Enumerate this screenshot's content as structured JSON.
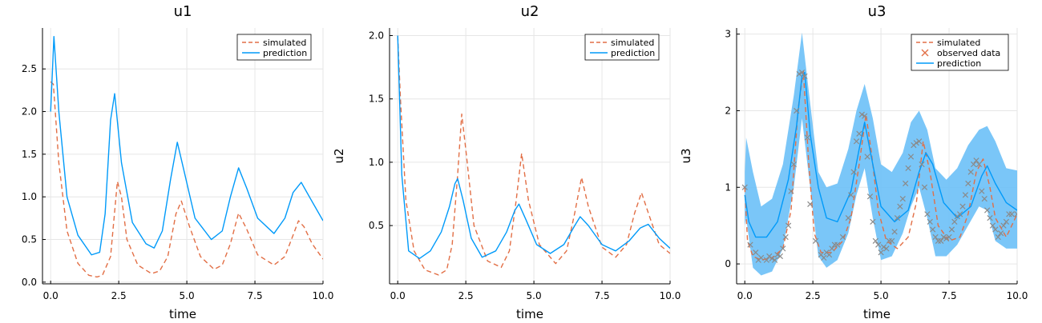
{
  "colors": {
    "simulated": "#e26f46",
    "prediction": "#009af9",
    "band": "#6cc0f7",
    "observed_mark": "#e26f46",
    "observed_overlay": "#8a8a8a"
  },
  "chart_data": [
    {
      "type": "line",
      "title": "u1",
      "xlabel": "time",
      "ylabel": "",
      "xlim": [
        -0.3,
        10.0
      ],
      "ylim": [
        -0.02,
        2.98
      ],
      "xticks": [
        0.0,
        2.5,
        5.0,
        7.5,
        10.0
      ],
      "xtick_labels": [
        "0.0",
        "2.5",
        "5.0",
        "7.5",
        "10.0"
      ],
      "yticks": [
        0.0,
        0.5,
        1.0,
        1.5,
        2.0,
        2.5
      ],
      "ytick_labels": [
        "0.0",
        "0.5",
        "1.0",
        "1.5",
        "2.0",
        "2.5"
      ],
      "grid": true,
      "legend": "top-right",
      "legend_entries": [
        "simulated",
        "prediction"
      ],
      "series": [
        {
          "name": "simulated",
          "style": "dashed",
          "x": [
            0.0,
            0.1,
            0.3,
            0.6,
            1.0,
            1.4,
            1.7,
            1.9,
            2.2,
            2.45,
            2.6,
            2.8,
            3.2,
            3.7,
            4.0,
            4.3,
            4.6,
            4.8,
            5.1,
            5.5,
            6.0,
            6.3,
            6.6,
            6.9,
            7.2,
            7.6,
            8.2,
            8.6,
            8.9,
            9.1,
            9.3,
            9.6,
            10.0
          ],
          "y": [
            2.35,
            2.32,
            1.4,
            0.6,
            0.22,
            0.08,
            0.06,
            0.08,
            0.3,
            1.18,
            1.0,
            0.5,
            0.2,
            0.1,
            0.13,
            0.3,
            0.8,
            0.95,
            0.65,
            0.3,
            0.15,
            0.2,
            0.45,
            0.81,
            0.62,
            0.32,
            0.2,
            0.3,
            0.55,
            0.72,
            0.65,
            0.45,
            0.27
          ]
        },
        {
          "name": "prediction",
          "style": "solid",
          "x": [
            0.0,
            0.12,
            0.3,
            0.6,
            1.0,
            1.5,
            1.8,
            2.0,
            2.2,
            2.35,
            2.6,
            3.0,
            3.5,
            3.8,
            4.1,
            4.4,
            4.65,
            4.9,
            5.3,
            5.9,
            6.3,
            6.6,
            6.9,
            7.2,
            7.6,
            8.2,
            8.6,
            8.9,
            9.2,
            9.5,
            10.0
          ],
          "y": [
            2.0,
            2.88,
            2.0,
            1.0,
            0.55,
            0.32,
            0.35,
            0.8,
            1.9,
            2.21,
            1.4,
            0.7,
            0.45,
            0.4,
            0.6,
            1.2,
            1.64,
            1.3,
            0.75,
            0.5,
            0.6,
            1.0,
            1.34,
            1.1,
            0.75,
            0.57,
            0.75,
            1.05,
            1.17,
            1.0,
            0.72
          ]
        }
      ]
    },
    {
      "type": "line",
      "title": "u2",
      "xlabel": "time",
      "ylabel": "u2",
      "xlim": [
        -0.3,
        10.0
      ],
      "ylim": [
        0.04,
        2.06
      ],
      "xticks": [
        0.0,
        2.5,
        5.0,
        7.5,
        10.0
      ],
      "xtick_labels": [
        "0.0",
        "2.5",
        "5.0",
        "7.5",
        "10.0"
      ],
      "yticks": [
        0.5,
        1.0,
        1.5,
        2.0
      ],
      "ytick_labels": [
        "0.5",
        "1.0",
        "1.5",
        "2.0"
      ],
      "grid": true,
      "legend": "top-right",
      "legend_entries": [
        "simulated",
        "prediction"
      ],
      "series": [
        {
          "name": "simulated",
          "style": "dashed",
          "x": [
            0.0,
            0.1,
            0.3,
            0.6,
            1.0,
            1.5,
            1.8,
            2.0,
            2.2,
            2.35,
            2.5,
            2.8,
            3.3,
            3.8,
            4.1,
            4.35,
            4.55,
            4.8,
            5.2,
            5.8,
            6.2,
            6.5,
            6.75,
            7.0,
            7.5,
            8.0,
            8.4,
            8.7,
            8.95,
            9.2,
            9.6,
            10.0
          ],
          "y": [
            2.0,
            1.5,
            0.7,
            0.3,
            0.15,
            0.11,
            0.15,
            0.35,
            0.9,
            1.38,
            1.1,
            0.5,
            0.22,
            0.17,
            0.3,
            0.7,
            1.07,
            0.7,
            0.35,
            0.2,
            0.3,
            0.6,
            0.88,
            0.65,
            0.33,
            0.25,
            0.35,
            0.6,
            0.76,
            0.6,
            0.35,
            0.28
          ]
        },
        {
          "name": "prediction",
          "style": "solid",
          "x": [
            0.0,
            0.15,
            0.4,
            0.8,
            1.2,
            1.6,
            1.9,
            2.1,
            2.2,
            2.4,
            2.7,
            3.1,
            3.6,
            4.0,
            4.3,
            4.45,
            4.7,
            5.1,
            5.6,
            6.1,
            6.5,
            6.7,
            7.0,
            7.5,
            8.0,
            8.5,
            8.9,
            9.2,
            9.6,
            10.0
          ],
          "y": [
            2.0,
            0.9,
            0.3,
            0.24,
            0.3,
            0.45,
            0.65,
            0.83,
            0.87,
            0.7,
            0.4,
            0.25,
            0.3,
            0.45,
            0.62,
            0.67,
            0.55,
            0.35,
            0.28,
            0.35,
            0.5,
            0.57,
            0.5,
            0.35,
            0.3,
            0.38,
            0.48,
            0.51,
            0.4,
            0.32
          ]
        }
      ]
    },
    {
      "type": "line",
      "title": "u3",
      "xlabel": "time",
      "ylabel": "u3",
      "xlim": [
        -0.3,
        10.0
      ],
      "ylim": [
        -0.26,
        3.08
      ],
      "xticks": [
        0.0,
        2.5,
        5.0,
        7.5,
        10.0
      ],
      "xtick_labels": [
        "0.0",
        "2.5",
        "5.0",
        "7.5",
        "10.0"
      ],
      "yticks": [
        0,
        1,
        2,
        3
      ],
      "ytick_labels": [
        "0",
        "1",
        "2",
        "3"
      ],
      "grid": true,
      "legend": "top-right",
      "legend_entries": [
        "simulated",
        "observed data",
        "prediction"
      ],
      "band": {
        "x": [
          0.0,
          0.05,
          0.3,
          0.6,
          1.0,
          1.4,
          1.8,
          2.1,
          2.4,
          2.7,
          3.0,
          3.4,
          3.8,
          4.1,
          4.4,
          4.7,
          5.0,
          5.4,
          5.8,
          6.1,
          6.4,
          6.7,
          7.0,
          7.4,
          7.8,
          8.2,
          8.6,
          8.9,
          9.2,
          9.6,
          10.0
        ],
        "lower": [
          0.5,
          0.6,
          -0.05,
          -0.15,
          -0.1,
          0.2,
          1.0,
          1.9,
          1.0,
          0.1,
          -0.05,
          0.05,
          0.4,
          0.9,
          1.25,
          0.6,
          0.05,
          0.1,
          0.4,
          0.75,
          1.0,
          0.6,
          0.1,
          0.1,
          0.25,
          0.5,
          0.75,
          0.7,
          0.3,
          0.2,
          0.2
        ],
        "upper": [
          1.2,
          1.65,
          1.2,
          0.75,
          0.85,
          1.3,
          2.2,
          3.02,
          2.1,
          1.2,
          1.0,
          1.05,
          1.5,
          2.0,
          2.35,
          1.9,
          1.3,
          1.2,
          1.45,
          1.85,
          2.0,
          1.75,
          1.25,
          1.1,
          1.25,
          1.55,
          1.75,
          1.8,
          1.6,
          1.25,
          1.22
        ]
      },
      "series": [
        {
          "name": "simulated",
          "style": "dashed",
          "x": [
            0.0,
            0.1,
            0.3,
            0.6,
            1.0,
            1.4,
            1.7,
            1.95,
            2.15,
            2.35,
            2.55,
            2.8,
            3.2,
            3.6,
            3.9,
            4.2,
            4.45,
            4.65,
            4.9,
            5.2,
            5.6,
            6.0,
            6.3,
            6.55,
            6.8,
            7.1,
            7.5,
            7.9,
            8.2,
            8.5,
            8.75,
            9.0,
            9.2,
            9.6,
            10.0
          ],
          "y": [
            1.0,
            0.3,
            0.1,
            0.05,
            0.08,
            0.2,
            0.7,
            2.0,
            2.52,
            1.3,
            0.4,
            0.15,
            0.15,
            0.3,
            0.6,
            1.3,
            1.95,
            1.45,
            0.7,
            0.3,
            0.2,
            0.35,
            0.8,
            1.6,
            1.2,
            0.5,
            0.3,
            0.35,
            0.65,
            1.2,
            1.37,
            1.0,
            0.6,
            0.35,
            0.65
          ]
        },
        {
          "name": "prediction",
          "style": "solid",
          "x": [
            0.0,
            0.15,
            0.4,
            0.8,
            1.2,
            1.6,
            1.9,
            2.1,
            2.2,
            2.4,
            2.7,
            3.0,
            3.4,
            3.9,
            4.2,
            4.4,
            4.7,
            5.0,
            5.5,
            6.0,
            6.4,
            6.65,
            6.9,
            7.3,
            7.8,
            8.3,
            8.7,
            8.9,
            9.2,
            9.6,
            10.0
          ],
          "y": [
            0.9,
            0.55,
            0.35,
            0.35,
            0.55,
            1.1,
            1.8,
            2.45,
            2.5,
            1.7,
            1.0,
            0.6,
            0.55,
            0.95,
            1.5,
            1.85,
            1.3,
            0.75,
            0.55,
            0.7,
            1.2,
            1.45,
            1.3,
            0.8,
            0.6,
            0.75,
            1.15,
            1.28,
            1.05,
            0.8,
            0.7
          ]
        }
      ],
      "observed": {
        "name": "observed data",
        "x": [
          0.0,
          0.2,
          0.4,
          0.5,
          0.6,
          0.8,
          0.9,
          1.0,
          1.1,
          1.2,
          1.3,
          1.4,
          1.5,
          1.6,
          1.7,
          1.8,
          1.9,
          2.0,
          2.1,
          2.2,
          2.3,
          2.4,
          2.6,
          2.8,
          2.9,
          3.0,
          3.1,
          3.2,
          3.3,
          3.4,
          3.6,
          3.8,
          3.9,
          4.0,
          4.1,
          4.2,
          4.3,
          4.4,
          4.5,
          4.6,
          4.7,
          4.8,
          4.9,
          5.0,
          5.1,
          5.2,
          5.3,
          5.4,
          5.5,
          5.6,
          5.7,
          5.8,
          5.9,
          6.0,
          6.1,
          6.2,
          6.3,
          6.4,
          6.5,
          6.6,
          6.7,
          6.8,
          6.9,
          7.0,
          7.1,
          7.2,
          7.3,
          7.4,
          7.5,
          7.6,
          7.7,
          7.8,
          7.9,
          8.0,
          8.1,
          8.2,
          8.3,
          8.4,
          8.5,
          8.6,
          8.7,
          8.8,
          8.9,
          9.0,
          9.1,
          9.2,
          9.3,
          9.4,
          9.5,
          9.6,
          9.7,
          9.8,
          10.0
        ],
        "y": [
          1.0,
          0.25,
          0.15,
          0.05,
          0.08,
          0.05,
          0.1,
          0.07,
          0.05,
          0.12,
          0.1,
          0.2,
          0.35,
          0.5,
          0.95,
          1.3,
          2.0,
          2.48,
          2.5,
          2.45,
          1.65,
          0.78,
          0.3,
          0.12,
          0.08,
          0.15,
          0.12,
          0.2,
          0.25,
          0.25,
          0.35,
          0.6,
          0.9,
          1.2,
          1.6,
          1.7,
          1.95,
          1.93,
          1.4,
          0.88,
          0.55,
          0.3,
          0.25,
          0.15,
          0.22,
          0.2,
          0.3,
          0.3,
          0.42,
          0.6,
          0.75,
          0.85,
          1.05,
          1.25,
          1.4,
          1.55,
          1.58,
          1.6,
          1.3,
          1.0,
          0.65,
          0.55,
          0.45,
          0.35,
          0.3,
          0.3,
          0.35,
          0.33,
          0.35,
          0.45,
          0.55,
          0.62,
          0.65,
          0.75,
          0.9,
          1.05,
          1.2,
          1.3,
          1.35,
          1.3,
          0.95,
          0.85,
          0.7,
          0.6,
          0.5,
          0.45,
          0.35,
          0.4,
          0.5,
          0.55,
          0.65,
          0.65,
          0.65
        ]
      }
    }
  ]
}
